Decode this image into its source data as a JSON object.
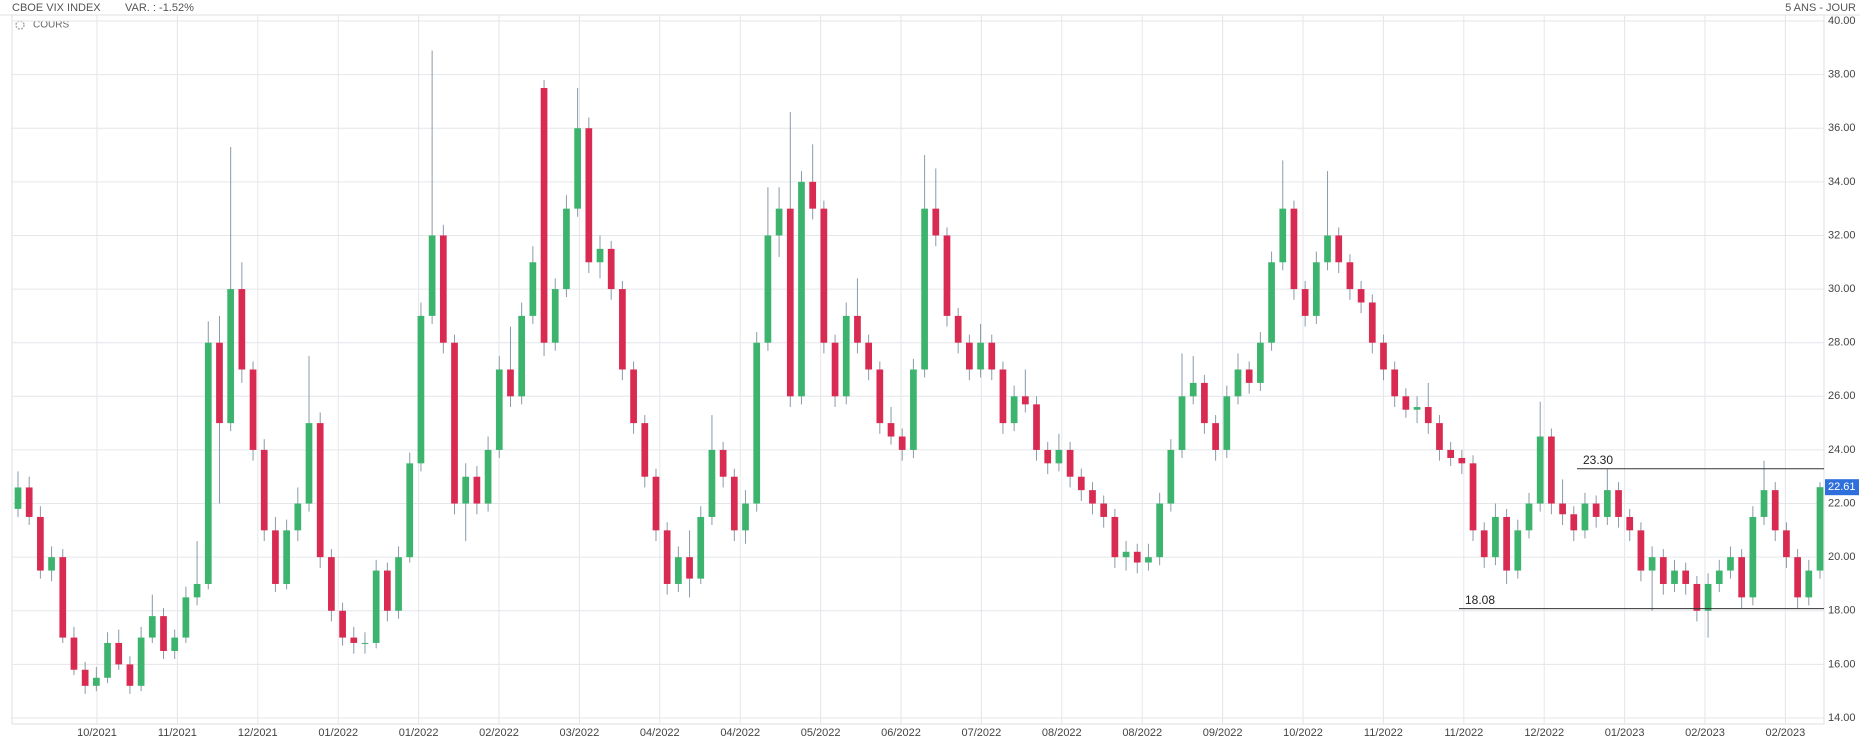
{
  "chart_data": {
    "type": "candlestick",
    "title": "CBOE VIX INDEX",
    "change": "VAR. : -1.52%",
    "period": "5 ANS - JOUR",
    "series_label": "COURS",
    "up_color": "#3db46d",
    "down_color": "#d92a51",
    "ylim": [
      14,
      40
    ],
    "yticks": [
      {
        "value": 14,
        "label": "14.00"
      },
      {
        "value": 16,
        "label": "16.00"
      },
      {
        "value": 18,
        "label": "18.00"
      },
      {
        "value": 20,
        "label": "20.00"
      },
      {
        "value": 22,
        "label": "22.00"
      },
      {
        "value": 24,
        "label": "24.00"
      },
      {
        "value": 26,
        "label": "26.00"
      },
      {
        "value": 28,
        "label": "28.00"
      },
      {
        "value": 30,
        "label": "30.00"
      },
      {
        "value": 32,
        "label": "32.00"
      },
      {
        "value": 34,
        "label": "34.00"
      },
      {
        "value": 36,
        "label": "36.00"
      },
      {
        "value": 38,
        "label": "38.00"
      },
      {
        "value": 40,
        "label": "40.00"
      }
    ],
    "x_labels": [
      "10/2021",
      "11/2021",
      "12/2021",
      "01/2022",
      "01/2022",
      "02/2022",
      "03/2022",
      "04/2022",
      "04/2022",
      "05/2022",
      "06/2022",
      "07/2022",
      "08/2022",
      "08/2022",
      "09/2022",
      "10/2022",
      "11/2022",
      "11/2022",
      "12/2022",
      "01/2023",
      "02/2023",
      "02/2023"
    ],
    "lines": [
      {
        "value": 23.3,
        "label": "23.30"
      },
      {
        "value": 18.08,
        "label": "18.08"
      }
    ],
    "last_price": {
      "value": 22.61,
      "label": "22.61"
    },
    "grid": true,
    "ohlc": [
      [
        21.8,
        23.2,
        21.5,
        22.6
      ],
      [
        22.6,
        23.0,
        21.2,
        21.5
      ],
      [
        21.5,
        21.9,
        19.2,
        19.5
      ],
      [
        19.5,
        20.4,
        19.1,
        20.0
      ],
      [
        20.0,
        20.3,
        16.8,
        17.0
      ],
      [
        17.0,
        17.4,
        15.6,
        15.8
      ],
      [
        15.8,
        16.1,
        14.9,
        15.2
      ],
      [
        15.2,
        15.9,
        15.0,
        15.5
      ],
      [
        15.5,
        17.2,
        15.3,
        16.8
      ],
      [
        16.8,
        17.3,
        15.8,
        16.0
      ],
      [
        16.0,
        16.3,
        14.9,
        15.2
      ],
      [
        15.2,
        17.4,
        15.0,
        17.0
      ],
      [
        17.0,
        18.6,
        16.8,
        17.8
      ],
      [
        17.8,
        18.1,
        16.2,
        16.5
      ],
      [
        16.5,
        17.3,
        16.2,
        17.0
      ],
      [
        17.0,
        18.9,
        16.8,
        18.5
      ],
      [
        18.5,
        20.6,
        18.2,
        19.0
      ],
      [
        19.0,
        28.8,
        18.8,
        28.0
      ],
      [
        28.0,
        29.0,
        22.0,
        25.0
      ],
      [
        25.0,
        35.3,
        24.7,
        30.0
      ],
      [
        30.0,
        31.0,
        26.5,
        27.0
      ],
      [
        27.0,
        27.3,
        23.6,
        24.0
      ],
      [
        24.0,
        24.4,
        20.6,
        21.0
      ],
      [
        21.0,
        21.5,
        18.7,
        19.0
      ],
      [
        19.0,
        21.4,
        18.8,
        21.0
      ],
      [
        21.0,
        22.6,
        20.6,
        22.0
      ],
      [
        22.0,
        27.5,
        21.7,
        25.0
      ],
      [
        25.0,
        25.4,
        19.6,
        20.0
      ],
      [
        20.0,
        20.3,
        17.6,
        18.0
      ],
      [
        18.0,
        18.3,
        16.7,
        17.0
      ],
      [
        17.0,
        17.4,
        16.4,
        16.8
      ],
      [
        16.8,
        17.2,
        16.4,
        16.8
      ],
      [
        16.8,
        19.9,
        16.6,
        19.5
      ],
      [
        19.5,
        19.8,
        17.6,
        18.0
      ],
      [
        18.0,
        20.4,
        17.7,
        20.0
      ],
      [
        20.0,
        23.9,
        19.8,
        23.5
      ],
      [
        23.5,
        29.5,
        23.2,
        29.0
      ],
      [
        29.0,
        38.9,
        28.7,
        32.0
      ],
      [
        32.0,
        32.4,
        27.6,
        28.0
      ],
      [
        28.0,
        28.3,
        21.6,
        22.0
      ],
      [
        22.0,
        23.5,
        20.6,
        23.0
      ],
      [
        23.0,
        23.4,
        21.6,
        22.0
      ],
      [
        22.0,
        24.5,
        21.7,
        24.0
      ],
      [
        24.0,
        27.5,
        23.7,
        27.0
      ],
      [
        27.0,
        28.6,
        25.6,
        26.0
      ],
      [
        26.0,
        29.5,
        25.7,
        29.0
      ],
      [
        29.0,
        31.6,
        28.7,
        31.0
      ],
      [
        37.5,
        37.8,
        27.5,
        28.0
      ],
      [
        28.0,
        30.4,
        27.7,
        30.0
      ],
      [
        30.0,
        33.5,
        29.7,
        33.0
      ],
      [
        33.0,
        37.5,
        32.7,
        36.0
      ],
      [
        36.0,
        36.4,
        30.6,
        31.0
      ],
      [
        31.0,
        32.0,
        30.4,
        31.5
      ],
      [
        31.5,
        31.8,
        29.6,
        30.0
      ],
      [
        30.0,
        30.3,
        26.6,
        27.0
      ],
      [
        27.0,
        27.3,
        24.6,
        25.0
      ],
      [
        25.0,
        25.3,
        22.6,
        23.0
      ],
      [
        23.0,
        23.3,
        20.6,
        21.0
      ],
      [
        21.0,
        21.3,
        18.6,
        19.0
      ],
      [
        19.0,
        20.4,
        18.7,
        20.0
      ],
      [
        20.0,
        21.0,
        18.5,
        19.2
      ],
      [
        19.2,
        21.9,
        19.0,
        21.5
      ],
      [
        21.5,
        25.3,
        21.2,
        24.0
      ],
      [
        24.0,
        24.3,
        22.6,
        23.0
      ],
      [
        23.0,
        23.3,
        20.6,
        21.0
      ],
      [
        21.0,
        22.5,
        20.5,
        22.0
      ],
      [
        22.0,
        28.4,
        21.7,
        28.0
      ],
      [
        28.0,
        33.8,
        27.7,
        32.0
      ],
      [
        32.0,
        33.8,
        31.2,
        33.0
      ],
      [
        33.0,
        36.6,
        25.6,
        26.0
      ],
      [
        26.0,
        34.4,
        25.7,
        34.0
      ],
      [
        34.0,
        35.4,
        32.6,
        33.0
      ],
      [
        33.0,
        33.3,
        27.6,
        28.0
      ],
      [
        28.0,
        28.3,
        25.6,
        26.0
      ],
      [
        26.0,
        29.5,
        25.7,
        29.0
      ],
      [
        29.0,
        30.4,
        27.6,
        28.0
      ],
      [
        28.0,
        28.3,
        26.6,
        27.0
      ],
      [
        27.0,
        27.3,
        24.6,
        25.0
      ],
      [
        25.0,
        25.6,
        24.2,
        24.5
      ],
      [
        24.5,
        24.8,
        23.6,
        24.0
      ],
      [
        24.0,
        27.4,
        23.7,
        27.0
      ],
      [
        27.0,
        35.0,
        26.7,
        33.0
      ],
      [
        33.0,
        34.5,
        31.6,
        32.0
      ],
      [
        32.0,
        32.3,
        28.6,
        29.0
      ],
      [
        29.0,
        29.3,
        27.6,
        28.0
      ],
      [
        28.0,
        28.3,
        26.6,
        27.0
      ],
      [
        27.0,
        28.7,
        26.7,
        28.0
      ],
      [
        28.0,
        28.3,
        26.6,
        27.0
      ],
      [
        27.0,
        27.3,
        24.6,
        25.0
      ],
      [
        25.0,
        26.4,
        24.7,
        26.0
      ],
      [
        26.0,
        27.0,
        25.4,
        25.7
      ],
      [
        25.7,
        26.0,
        23.6,
        24.0
      ],
      [
        24.0,
        24.3,
        23.1,
        23.5
      ],
      [
        23.5,
        24.6,
        23.2,
        24.0
      ],
      [
        24.0,
        24.3,
        22.6,
        23.0
      ],
      [
        23.0,
        23.3,
        22.1,
        22.5
      ],
      [
        22.5,
        22.8,
        21.6,
        22.0
      ],
      [
        22.0,
        22.3,
        21.1,
        21.5
      ],
      [
        21.5,
        21.8,
        19.6,
        20.0
      ],
      [
        20.0,
        20.6,
        19.5,
        20.2
      ],
      [
        20.2,
        20.5,
        19.4,
        19.8
      ],
      [
        19.8,
        20.5,
        19.5,
        20.0
      ],
      [
        20.0,
        22.4,
        19.7,
        22.0
      ],
      [
        22.0,
        24.4,
        21.7,
        24.0
      ],
      [
        24.0,
        27.6,
        23.7,
        26.0
      ],
      [
        26.0,
        27.5,
        25.7,
        26.5
      ],
      [
        26.5,
        26.8,
        24.6,
        25.0
      ],
      [
        25.0,
        25.3,
        23.6,
        24.0
      ],
      [
        24.0,
        26.4,
        23.7,
        26.0
      ],
      [
        26.0,
        27.6,
        25.7,
        27.0
      ],
      [
        27.0,
        27.3,
        26.1,
        26.5
      ],
      [
        26.5,
        28.4,
        26.2,
        28.0
      ],
      [
        28.0,
        31.4,
        27.7,
        31.0
      ],
      [
        31.0,
        34.8,
        30.7,
        33.0
      ],
      [
        33.0,
        33.3,
        29.6,
        30.0
      ],
      [
        30.0,
        30.3,
        28.6,
        29.0
      ],
      [
        29.0,
        31.4,
        28.7,
        31.0
      ],
      [
        31.0,
        34.4,
        30.7,
        32.0
      ],
      [
        32.0,
        32.3,
        30.6,
        31.0
      ],
      [
        31.0,
        31.3,
        29.6,
        30.0
      ],
      [
        30.0,
        30.3,
        29.1,
        29.5
      ],
      [
        29.5,
        29.8,
        27.6,
        28.0
      ],
      [
        28.0,
        28.3,
        26.6,
        27.0
      ],
      [
        27.0,
        27.3,
        25.6,
        26.0
      ],
      [
        26.0,
        26.3,
        25.2,
        25.5
      ],
      [
        25.5,
        26.0,
        25.0,
        25.6
      ],
      [
        25.6,
        26.5,
        24.6,
        25.0
      ],
      [
        25.0,
        25.3,
        23.6,
        24.0
      ],
      [
        24.0,
        24.3,
        23.4,
        23.7
      ],
      [
        23.7,
        24.0,
        23.1,
        23.5
      ],
      [
        23.5,
        23.8,
        20.6,
        21.0
      ],
      [
        21.0,
        21.3,
        19.6,
        20.0
      ],
      [
        20.0,
        22.0,
        19.7,
        21.5
      ],
      [
        21.5,
        21.8,
        19.0,
        19.5
      ],
      [
        19.5,
        21.4,
        19.2,
        21.0
      ],
      [
        21.0,
        22.4,
        20.7,
        22.0
      ],
      [
        22.0,
        25.8,
        21.7,
        24.5
      ],
      [
        24.5,
        24.8,
        21.6,
        22.0
      ],
      [
        22.0,
        22.9,
        21.2,
        21.6
      ],
      [
        21.6,
        21.9,
        20.6,
        21.0
      ],
      [
        21.0,
        22.4,
        20.7,
        22.0
      ],
      [
        22.0,
        22.3,
        21.1,
        21.5
      ],
      [
        21.5,
        23.3,
        21.2,
        22.5
      ],
      [
        22.5,
        22.8,
        21.1,
        21.5
      ],
      [
        21.5,
        21.8,
        20.6,
        21.0
      ],
      [
        21.0,
        21.3,
        19.1,
        19.5
      ],
      [
        19.5,
        20.4,
        18.0,
        20.0
      ],
      [
        20.0,
        20.3,
        18.6,
        19.0
      ],
      [
        19.0,
        19.9,
        18.7,
        19.5
      ],
      [
        19.5,
        19.8,
        18.6,
        19.0
      ],
      [
        19.0,
        19.3,
        17.6,
        18.0
      ],
      [
        18.0,
        19.4,
        17.0,
        19.0
      ],
      [
        19.0,
        19.9,
        18.7,
        19.5
      ],
      [
        19.5,
        20.4,
        19.2,
        20.0
      ],
      [
        20.0,
        20.3,
        18.1,
        18.5
      ],
      [
        18.5,
        21.9,
        18.2,
        21.5
      ],
      [
        21.5,
        23.6,
        21.2,
        22.5
      ],
      [
        22.5,
        22.8,
        20.6,
        21.0
      ],
      [
        21.0,
        21.3,
        19.6,
        20.0
      ],
      [
        20.0,
        20.3,
        18.1,
        18.5
      ],
      [
        18.5,
        19.9,
        18.2,
        19.5
      ],
      [
        19.5,
        22.8,
        19.2,
        22.61
      ]
    ]
  }
}
